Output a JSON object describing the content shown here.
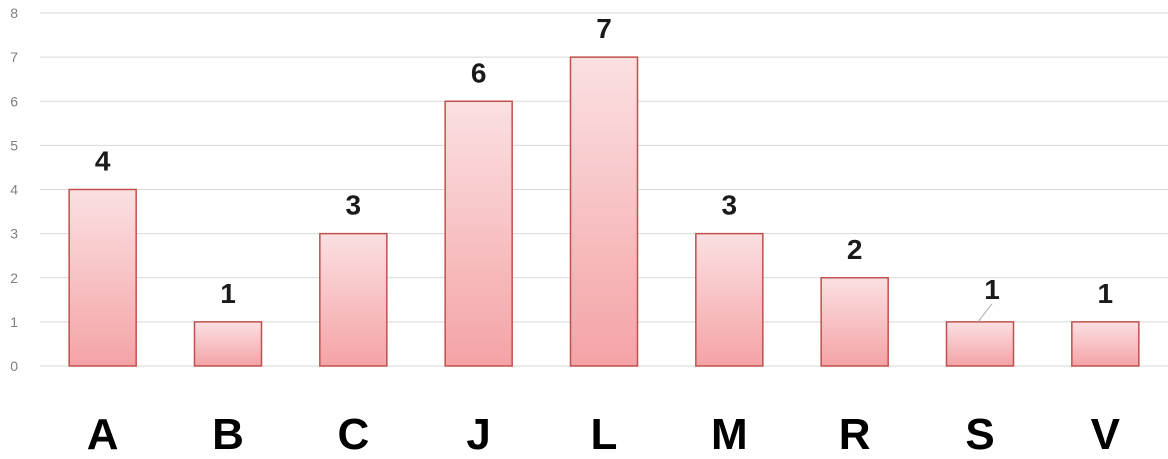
{
  "chart_data": {
    "type": "bar",
    "categories": [
      "A",
      "B",
      "C",
      "J",
      "L",
      "M",
      "R",
      "S",
      "V"
    ],
    "values": [
      4,
      1,
      3,
      6,
      7,
      3,
      2,
      1,
      1
    ],
    "title": "",
    "xlabel": "",
    "ylabel": "",
    "ylim": [
      0,
      8
    ],
    "yticks": [
      0,
      1,
      2,
      3,
      4,
      5,
      6,
      7,
      8
    ],
    "grid": true,
    "legend": "none",
    "data_labels": true,
    "colors": {
      "bar_top": "#fbe0e2",
      "bar_bottom": "#f4a3a6",
      "bar_border": "#c0504d",
      "grid": "#d9d9d9",
      "tick_text": "#7f7f7f"
    }
  }
}
